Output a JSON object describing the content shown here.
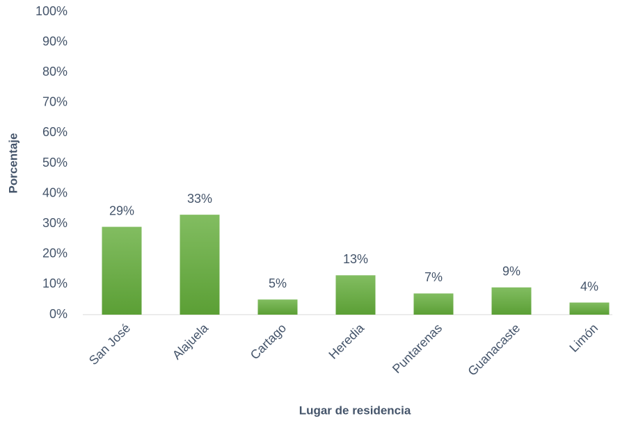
{
  "chart_data": {
    "type": "bar",
    "x_label": "Lugar de residencia",
    "y_label": "Porcentaje",
    "categories": [
      "San José",
      "Alajuela",
      "Cartago",
      "Heredia",
      "Puntarenas",
      "Guanacaste",
      "Limón"
    ],
    "values": [
      29,
      33,
      5,
      13,
      7,
      9,
      4
    ],
    "value_labels": [
      "29%",
      "33%",
      "5%",
      "13%",
      "7%",
      "9%",
      "4%"
    ],
    "color": "#6aad45",
    "ylim": [
      0,
      100
    ],
    "yticks": [
      {
        "value": 0,
        "label": "0%"
      },
      {
        "value": 10,
        "label": "10%"
      },
      {
        "value": 20,
        "label": "20%"
      },
      {
        "value": 30,
        "label": "30%"
      },
      {
        "value": 40,
        "label": "40%"
      },
      {
        "value": 50,
        "label": "50%"
      },
      {
        "value": 60,
        "label": "60%"
      },
      {
        "value": 70,
        "label": "70%"
      },
      {
        "value": 80,
        "label": "80%"
      },
      {
        "value": 90,
        "label": "90%"
      },
      {
        "value": 100,
        "label": "100%"
      }
    ],
    "grid": false
  }
}
